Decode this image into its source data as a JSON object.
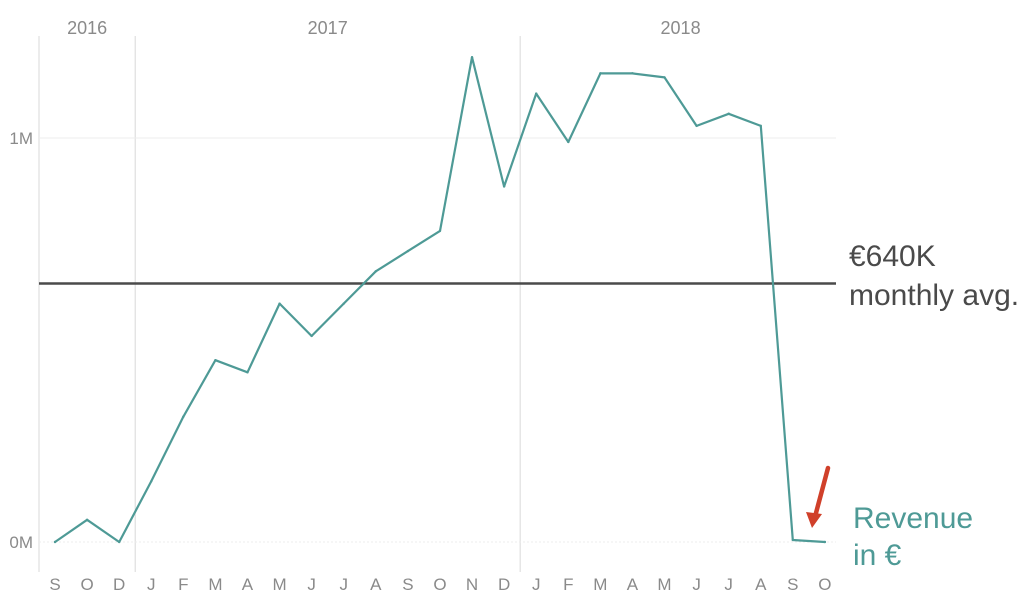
{
  "chart_data": {
    "type": "line",
    "years": [
      {
        "label": "2016",
        "start_index": 0,
        "end_index": 3
      },
      {
        "label": "2017",
        "start_index": 3,
        "end_index": 15
      },
      {
        "label": "2018",
        "start_index": 15,
        "end_index": 25
      }
    ],
    "categories": [
      "S",
      "O",
      "D",
      "J",
      "F",
      "M",
      "A",
      "M",
      "J",
      "J",
      "A",
      "S",
      "O",
      "N",
      "D",
      "J",
      "F",
      "M",
      "A",
      "M",
      "J",
      "J",
      "A",
      "S",
      "O"
    ],
    "series": [
      {
        "values": [
          0,
          55000,
          0,
          150000,
          310000,
          450000,
          420000,
          590000,
          510000,
          590000,
          670000,
          720000,
          770000,
          1200000,
          880000,
          1110000,
          990000,
          1160000,
          1160000,
          1150000,
          1030000,
          1060000,
          1030000,
          5000,
          0
        ],
        "color": "#4e9a96"
      }
    ],
    "average": {
      "value": 640000,
      "label_value": "€640K",
      "label_text": "monthly avg.",
      "color": "#4a4a4a"
    },
    "series_label": {
      "line1": "Revenue",
      "line2": "in €",
      "color": "#4e9a96"
    },
    "annotation_arrow_color": "#d0402a",
    "y_ticks": [
      {
        "value": 0,
        "label": "0M"
      },
      {
        "value": 1000000,
        "label": "1M"
      }
    ],
    "ylim": [
      -60000,
      1300000
    ],
    "grid": true
  }
}
